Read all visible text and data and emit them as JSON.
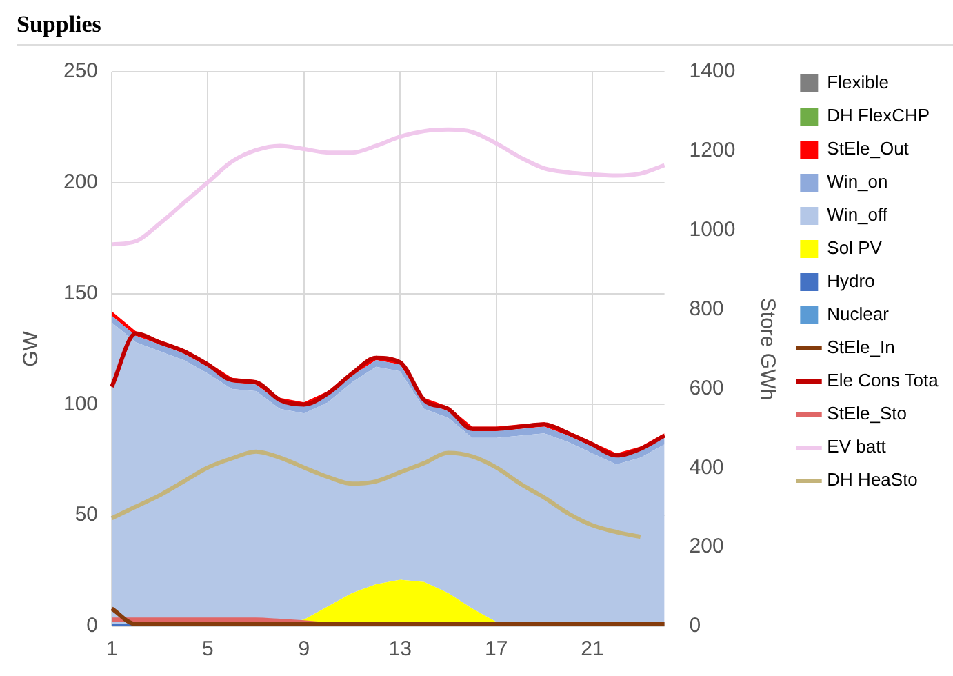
{
  "chart_data": {
    "type": "area",
    "title": "Supplies",
    "ylabel": "GW",
    "y2label": "Store GWh",
    "stacked": true,
    "grid": true,
    "legend": "right",
    "categories": [
      "1",
      null,
      null,
      null,
      "5",
      null,
      null,
      null,
      "9",
      null,
      null,
      null,
      "13",
      null,
      null,
      null,
      "17",
      null,
      null,
      null,
      "21",
      null,
      null,
      null
    ],
    "ylim": [
      0,
      250
    ],
    "yticks": [
      0,
      50,
      100,
      150,
      200,
      250
    ],
    "y2lim": [
      0,
      1400
    ],
    "y2ticks": [
      0,
      200,
      400,
      600,
      800,
      1000,
      1200,
      1400
    ],
    "series": [
      {
        "name": "Nuclear",
        "color": "#5b9bd5",
        "values": [
          null,
          null,
          null,
          null,
          null,
          null,
          null,
          null,
          null,
          null,
          null,
          null,
          null,
          null,
          null,
          null,
          null,
          null,
          null,
          null,
          null,
          null,
          null,
          null
        ]
      },
      {
        "name": "Hydro",
        "color": "#4472c4",
        "values": [
          1,
          1,
          1,
          1,
          1,
          1,
          1,
          1,
          1,
          1,
          1,
          1,
          1,
          1,
          1,
          1,
          1,
          1,
          1,
          1,
          1,
          0,
          0,
          0
        ]
      },
      {
        "name": "Sol PV",
        "color": "#ffff00",
        "values": [
          0,
          0,
          0,
          0,
          0,
          0,
          0,
          0,
          2,
          8,
          14,
          18,
          20,
          19,
          14,
          7,
          1,
          0,
          0,
          0,
          0,
          0,
          0,
          0
        ]
      },
      {
        "name": "Win_off",
        "color": "#b4c7e7",
        "values": [
          136,
          127,
          123,
          119,
          113,
          106,
          105,
          97,
          93,
          92,
          95,
          98,
          94,
          78,
          79,
          77,
          83,
          85,
          86,
          82,
          77,
          73,
          76,
          82
        ]
      },
      {
        "name": "Win_on",
        "color": "#8faadc",
        "values": [
          3,
          3,
          3,
          3,
          3,
          3,
          3,
          3,
          3,
          3,
          3,
          3,
          3,
          3,
          3,
          3,
          3,
          3,
          3,
          3,
          3,
          3,
          3,
          3
        ]
      },
      {
        "name": "StEle_Out",
        "color": "#ff0000",
        "values": [
          2,
          2,
          2,
          2,
          2,
          2,
          2,
          2,
          2,
          2,
          2,
          2,
          2,
          2,
          2,
          2,
          2,
          2,
          2,
          2,
          2,
          2,
          2,
          2
        ]
      },
      {
        "name": "DH FlexCHP",
        "color": "#70ad47",
        "values": [
          null,
          null,
          null,
          null,
          null,
          null,
          null,
          null,
          null,
          null,
          null,
          null,
          null,
          null,
          null,
          null,
          null,
          null,
          null,
          null,
          null,
          null,
          null,
          null
        ]
      },
      {
        "name": "Flexible",
        "color": "#7f7f7f",
        "values": [
          null,
          null,
          null,
          null,
          null,
          null,
          null,
          null,
          null,
          null,
          null,
          null,
          null,
          null,
          null,
          null,
          null,
          null,
          null,
          null,
          null,
          null,
          null,
          null
        ]
      },
      {
        "name": "StEle_In",
        "type": "line",
        "color": "#843c0c",
        "values": [
          8,
          1,
          1,
          1,
          1,
          1,
          1,
          1,
          1,
          1,
          1,
          1,
          1,
          1,
          1,
          1,
          1,
          1,
          1,
          1,
          1,
          1,
          1,
          1
        ]
      },
      {
        "name": "Ele Cons Tota",
        "type": "line",
        "color": "#c00000",
        "values": [
          108,
          132,
          128,
          124,
          118,
          111,
          110,
          102,
          100,
          105,
          114,
          121,
          119,
          102,
          98,
          89,
          89,
          90,
          91,
          87,
          82,
          77,
          80,
          86
        ]
      },
      {
        "name": "StEle_Sto",
        "type": "line",
        "axis": "y2",
        "color": "#e06666",
        "values": [
          17,
          17,
          17,
          17,
          17,
          17,
          17,
          14,
          10,
          5,
          null,
          null,
          null,
          null,
          null,
          null,
          null,
          null,
          null,
          null,
          null,
          null,
          null,
          null
        ]
      },
      {
        "name": "EV batt",
        "type": "line",
        "axis": "y2",
        "color": "#f0c8ec",
        "values": [
          964,
          972,
          1017,
          1069,
          1121,
          1173,
          1202,
          1213,
          1205,
          1196,
          1196,
          1213,
          1236,
          1250,
          1254,
          1248,
          1219,
          1184,
          1156,
          1146,
          1141,
          1138,
          1143,
          1164
        ]
      },
      {
        "name": "DH HeaSto",
        "type": "line",
        "axis": "y2",
        "color": "#c4b47a",
        "values": [
          273,
          302,
          331,
          366,
          401,
          424,
          441,
          426,
          401,
          377,
          360,
          366,
          389,
          412,
          438,
          429,
          401,
          360,
          325,
          285,
          255,
          238,
          226,
          null
        ]
      }
    ]
  }
}
